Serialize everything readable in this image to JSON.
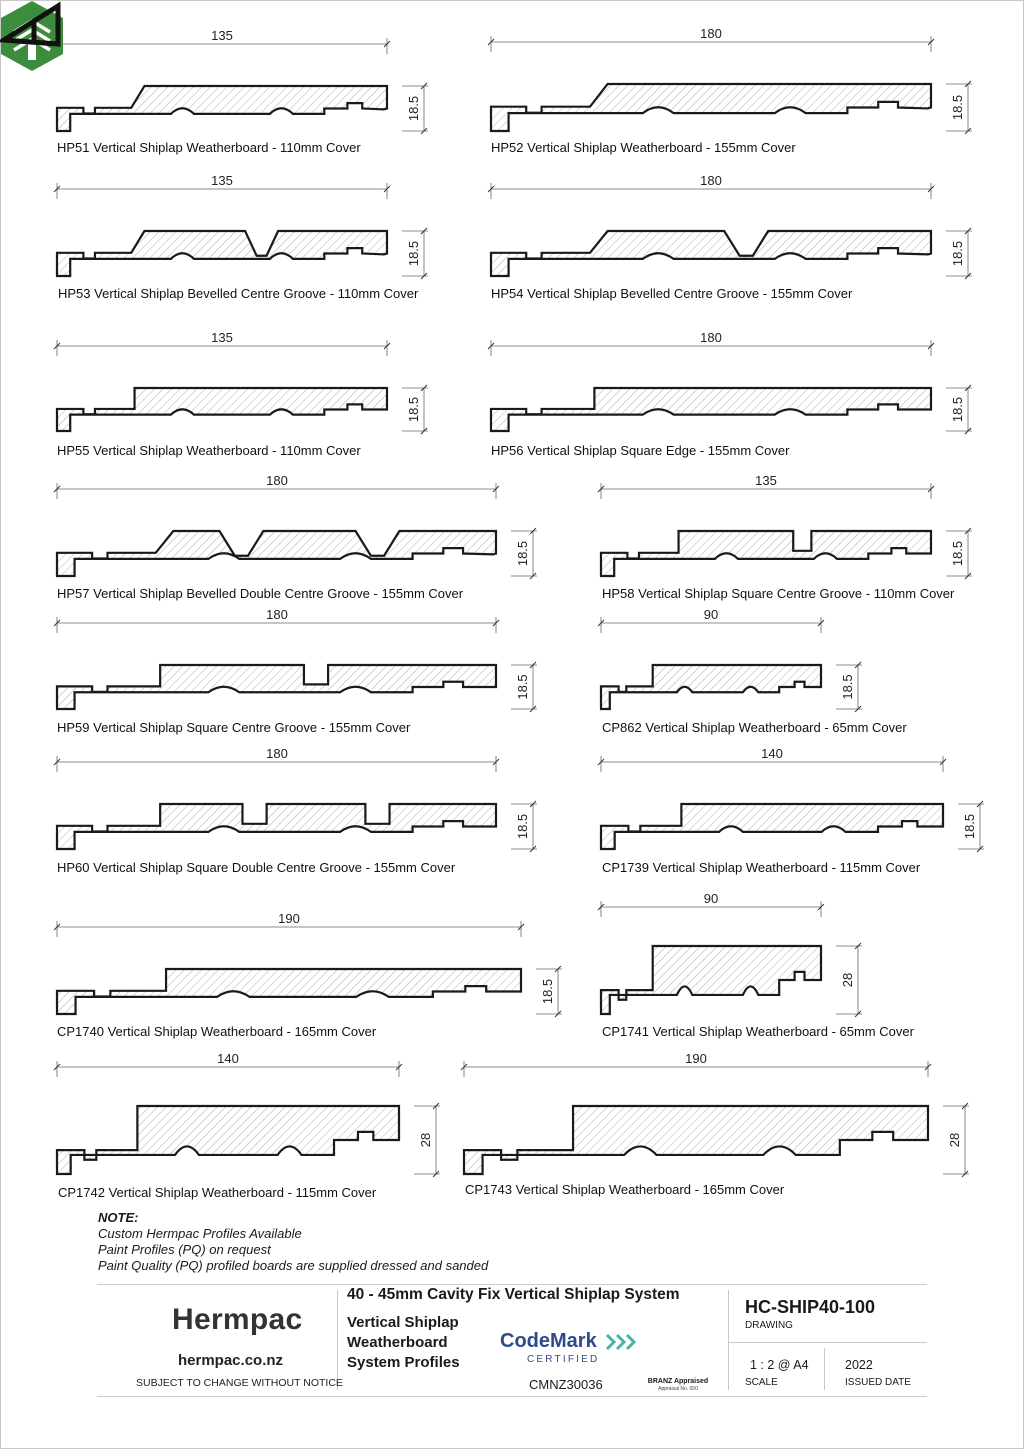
{
  "profiles": [
    {
      "id": "hp51",
      "caption": "HP51 Vertical Shiplap Weatherboard - 110mm Cover",
      "width_dim": "135",
      "height_dim": "18.5",
      "shape": "weatherboard",
      "grooves": []
    },
    {
      "id": "hp52",
      "caption": "HP52 Vertical Shiplap Weatherboard - 155mm Cover",
      "width_dim": "180",
      "height_dim": "18.5",
      "shape": "weatherboard",
      "grooves": []
    },
    {
      "id": "hp53",
      "caption": "HP53 Vertical Shiplap Bevelled Centre Groove - 110mm Cover",
      "width_dim": "135",
      "height_dim": "18.5",
      "shape": "bevel-edge",
      "grooves": [
        "bevel"
      ]
    },
    {
      "id": "hp54",
      "caption": "HP54 Vertical Shiplap Bevelled Centre Groove  - 155mm Cover",
      "width_dim": "180",
      "height_dim": "18.5",
      "shape": "bevel-edge",
      "grooves": [
        "bevel"
      ]
    },
    {
      "id": "hp55",
      "caption": "HP55 Vertical Shiplap Weatherboard - 110mm Cover",
      "width_dim": "135",
      "height_dim": "18.5",
      "shape": "square",
      "grooves": []
    },
    {
      "id": "hp56",
      "caption": "HP56 Vertical Shiplap Square Edge - 155mm Cover",
      "width_dim": "180",
      "height_dim": "18.5",
      "shape": "square",
      "grooves": []
    },
    {
      "id": "hp57",
      "caption": "HP57 Vertical Shiplap Bevelled Double Centre Groove - 155mm Cover",
      "width_dim": "180",
      "height_dim": "18.5",
      "shape": "bevel-edge",
      "grooves": [
        "bevel",
        "bevel"
      ]
    },
    {
      "id": "hp58",
      "caption": "HP58 Vertical Shiplap Square Centre Groove - 110mm Cover",
      "width_dim": "135",
      "height_dim": "18.5",
      "shape": "square",
      "grooves": [
        "square"
      ]
    },
    {
      "id": "hp59",
      "caption": "HP59 Vertical Shiplap Square Centre Groove - 155mm Cover",
      "width_dim": "180",
      "height_dim": "18.5",
      "shape": "square",
      "grooves": [
        "square"
      ]
    },
    {
      "id": "cp862",
      "caption": "CP862 Vertical Shiplap Weatherboard - 65mm Cover",
      "width_dim": "90",
      "height_dim": "18.5",
      "shape": "square",
      "grooves": []
    },
    {
      "id": "hp60",
      "caption": "HP60 Vertical Shiplap Square Double Centre Groove - 155mm Cover",
      "width_dim": "180",
      "height_dim": "18.5",
      "shape": "square",
      "grooves": [
        "square",
        "square"
      ]
    },
    {
      "id": "cp1739",
      "caption": "CP1739 Vertical Shiplap Weatherboard - 115mm Cover",
      "width_dim": "140",
      "height_dim": "18.5",
      "shape": "square",
      "grooves": []
    },
    {
      "id": "cp1740",
      "caption": "CP1740 Vertical Shiplap Weatherboard - 165mm Cover",
      "width_dim": "190",
      "height_dim": "18.5",
      "shape": "square",
      "grooves": []
    },
    {
      "id": "cp1741",
      "caption": "CP1741 Vertical Shiplap Weatherboard - 65mm Cover",
      "width_dim": "90",
      "height_dim": "28",
      "shape": "square",
      "grooves": []
    },
    {
      "id": "cp1742",
      "caption": "CP1742 Vertical Shiplap Weatherboard - 115mm Cover",
      "width_dim": "140",
      "height_dim": "28",
      "shape": "square",
      "grooves": []
    },
    {
      "id": "cp1743",
      "caption": "CP1743 Vertical Shiplap Weatherboard - 165mm Cover",
      "width_dim": "190",
      "height_dim": "28",
      "shape": "square",
      "grooves": []
    }
  ],
  "note": {
    "heading": "NOTE:",
    "lines": [
      "Custom Hermpac Profiles Available",
      "Paint Profiles (PQ) on request",
      "Paint Quality (PQ) profiled boards are supplied dressed and sanded"
    ]
  },
  "title_block": {
    "brand": "Hermpac",
    "website": "hermpac.co.nz",
    "subject": "SUBJECT TO CHANGE WITHOUT NOTICE",
    "system_title": "40 - 45mm Cavity Fix Vertical Shiplap System",
    "subtitle_lines": [
      "Vertical Shiplap",
      "Weatherboard",
      "System Profiles"
    ],
    "codemark_word": "CodeMark",
    "codemark_certified": "CERTIFIED",
    "codemark_number": "CMNZ30036",
    "branz_label": "BRANZ Appraised",
    "branz_number": "Appraisal No. 650",
    "drawing_number": "HC-SHIP40-100",
    "drawing_label": "DRAWING",
    "scale_value": "1 : 2 @ A4",
    "scale_label": "SCALE",
    "issued_value": "2022",
    "issued_label": "ISSUED DATE"
  },
  "colors": {
    "logo_green": "#3d8b3d",
    "codemark_blue": "#2f4a8c",
    "codemark_teal": "#4bb3a6"
  }
}
